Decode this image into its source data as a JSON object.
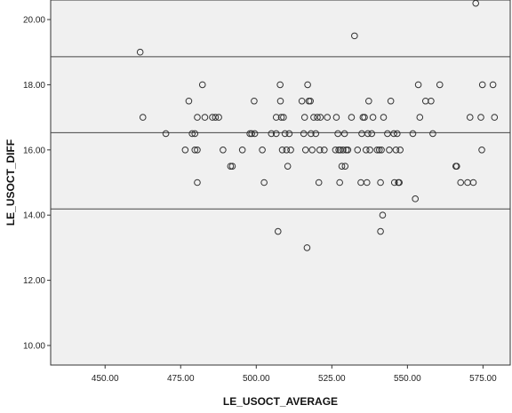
{
  "chart_data": {
    "type": "scatter",
    "title": "",
    "xlabel": "LE_USOCT_AVERAGE",
    "ylabel": "LE_USOCT_DIFF",
    "xlim": [
      432,
      584
    ],
    "ylim": [
      9.4,
      20.6
    ],
    "xticks": [
      "450.00",
      "475.00",
      "500.00",
      "525.00",
      "550.00",
      "575.00"
    ],
    "yticks": [
      "10.00",
      "12.00",
      "14.00",
      "16.00",
      "18.00",
      "20.00"
    ],
    "grid": false,
    "colors": {
      "plot_background": "#f0f0f0",
      "marker": "#333333",
      "reference_lines": "#444444"
    },
    "reference_lines": [
      18.86,
      16.53,
      14.19
    ],
    "points": [
      [
        461.6,
        19.0
      ],
      [
        462.5,
        17.0
      ],
      [
        470.1,
        16.5
      ],
      [
        476.5,
        16.0
      ],
      [
        477.7,
        17.5
      ],
      [
        478.8,
        16.5
      ],
      [
        479.7,
        16.0
      ],
      [
        479.7,
        16.5
      ],
      [
        480.5,
        16.0
      ],
      [
        480.5,
        17.0
      ],
      [
        480.5,
        15.0
      ],
      [
        482.2,
        18.0
      ],
      [
        483.0,
        17.0
      ],
      [
        485.5,
        17.0
      ],
      [
        486.5,
        17.0
      ],
      [
        487.6,
        17.0
      ],
      [
        489.0,
        16.0
      ],
      [
        491.5,
        15.5
      ],
      [
        492.1,
        15.5
      ],
      [
        495.4,
        16.0
      ],
      [
        497.9,
        16.5
      ],
      [
        498.5,
        16.5
      ],
      [
        499.3,
        17.5
      ],
      [
        499.5,
        16.5
      ],
      [
        502.0,
        16.0
      ],
      [
        502.6,
        15.0
      ],
      [
        505.0,
        16.5
      ],
      [
        506.6,
        17.0
      ],
      [
        506.6,
        16.5
      ],
      [
        507.2,
        13.5
      ],
      [
        507.9,
        18.0
      ],
      [
        508.0,
        17.5
      ],
      [
        508.3,
        17.0
      ],
      [
        508.6,
        16.0
      ],
      [
        509.0,
        17.0
      ],
      [
        509.5,
        16.5
      ],
      [
        510.0,
        16.0
      ],
      [
        510.4,
        15.5
      ],
      [
        510.9,
        16.5
      ],
      [
        511.4,
        16.0
      ],
      [
        515.1,
        17.5
      ],
      [
        515.7,
        16.5
      ],
      [
        516.0,
        17.0
      ],
      [
        516.3,
        16.0
      ],
      [
        516.8,
        13.0
      ],
      [
        517.0,
        18.0
      ],
      [
        517.4,
        17.5
      ],
      [
        517.9,
        17.5
      ],
      [
        518.1,
        16.5
      ],
      [
        518.5,
        16.0
      ],
      [
        519.0,
        17.0
      ],
      [
        519.7,
        16.5
      ],
      [
        520.2,
        17.0
      ],
      [
        520.7,
        15.0
      ],
      [
        521.0,
        16.0
      ],
      [
        521.2,
        17.0
      ],
      [
        522.5,
        16.0
      ],
      [
        523.5,
        17.0
      ],
      [
        526.2,
        16.0
      ],
      [
        526.5,
        17.0
      ],
      [
        527.0,
        16.5
      ],
      [
        527.3,
        16.0
      ],
      [
        527.6,
        15.0
      ],
      [
        527.8,
        16.0
      ],
      [
        528.3,
        15.5
      ],
      [
        528.7,
        16.0
      ],
      [
        529.2,
        16.5
      ],
      [
        529.4,
        15.5
      ],
      [
        529.8,
        16.0
      ],
      [
        530.3,
        16.0
      ],
      [
        531.5,
        17.0
      ],
      [
        532.5,
        19.5
      ],
      [
        533.5,
        16.0
      ],
      [
        534.6,
        15.0
      ],
      [
        534.9,
        16.5
      ],
      [
        535.3,
        17.0
      ],
      [
        535.8,
        17.0
      ],
      [
        536.3,
        16.0
      ],
      [
        536.6,
        15.0
      ],
      [
        536.9,
        16.5
      ],
      [
        537.2,
        17.5
      ],
      [
        537.6,
        16.0
      ],
      [
        538.2,
        16.5
      ],
      [
        538.6,
        17.0
      ],
      [
        540.0,
        16.0
      ],
      [
        540.7,
        16.0
      ],
      [
        541.1,
        15.0
      ],
      [
        541.1,
        13.5
      ],
      [
        541.4,
        16.0
      ],
      [
        541.8,
        14.0
      ],
      [
        542.1,
        17.0
      ],
      [
        543.4,
        16.5
      ],
      [
        544.0,
        16.0
      ],
      [
        544.5,
        17.5
      ],
      [
        545.5,
        16.5
      ],
      [
        545.7,
        15.0
      ],
      [
        546.2,
        16.0
      ],
      [
        546.6,
        16.5
      ],
      [
        547.0,
        15.0
      ],
      [
        547.3,
        15.0
      ],
      [
        547.6,
        16.0
      ],
      [
        551.8,
        16.5
      ],
      [
        552.6,
        14.5
      ],
      [
        553.6,
        18.0
      ],
      [
        554.1,
        17.0
      ],
      [
        556.0,
        17.5
      ],
      [
        557.8,
        17.5
      ],
      [
        558.4,
        16.5
      ],
      [
        560.7,
        18.0
      ],
      [
        566.0,
        15.5
      ],
      [
        566.3,
        15.5
      ],
      [
        567.6,
        15.0
      ],
      [
        569.9,
        15.0
      ],
      [
        570.7,
        17.0
      ],
      [
        571.8,
        15.0
      ],
      [
        572.6,
        20.5
      ],
      [
        574.3,
        17.0
      ],
      [
        574.6,
        16.0
      ],
      [
        574.8,
        18.0
      ],
      [
        578.3,
        18.0
      ],
      [
        578.8,
        17.0
      ]
    ]
  }
}
